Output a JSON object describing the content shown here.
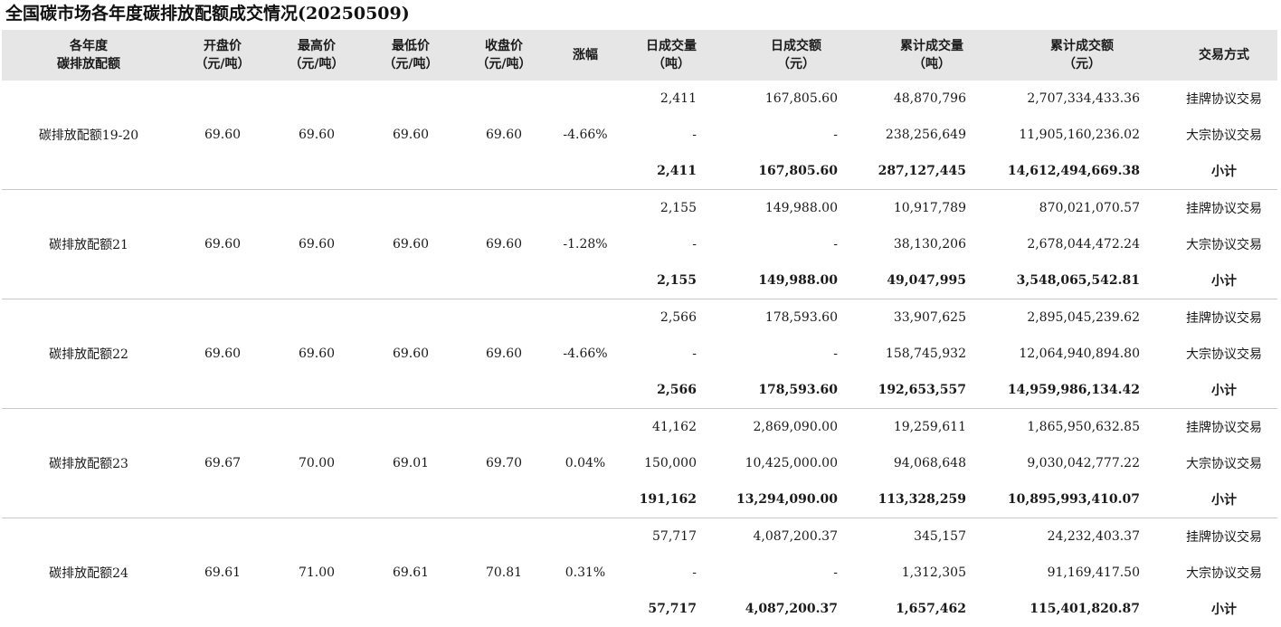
{
  "title": "全国碳市场各年度碳排放配额成交情况(20250509)",
  "headers": [
    [
      "各年度",
      "碳排放配额"
    ],
    [
      "开盘价",
      "（元/吨）"
    ],
    [
      "最高价",
      "（元/吨）"
    ],
    [
      "最低价",
      "（元/吨）"
    ],
    [
      "收盘价",
      "（元/吨）"
    ],
    [
      "涨幅"
    ],
    [
      "日成交量",
      "（吨）"
    ],
    [
      "日成交额",
      "（元）"
    ],
    [
      "累计成交量",
      "（吨）"
    ],
    [
      "累计成交额",
      "（元）"
    ],
    [
      "交易方式"
    ]
  ],
  "groups": [
    {
      "name": "碳排放配额19-20",
      "open": "69.60",
      "high": "69.60",
      "low": "69.60",
      "close": "69.60",
      "change": "-4.66%",
      "rows": [
        {
          "daily_vol": "2,411",
          "daily_amt": "167,805.60",
          "cum_vol": "48,870,796",
          "cum_amt": "2,707,334,433.36",
          "method": "挂牌协议交易"
        },
        {
          "daily_vol": "-",
          "daily_amt": "-",
          "cum_vol": "238,256,649",
          "cum_amt": "11,905,160,236.02",
          "method": "大宗协议交易"
        },
        {
          "daily_vol": "2,411",
          "daily_amt": "167,805.60",
          "cum_vol": "287,127,445",
          "cum_amt": "14,612,494,669.38",
          "method": "小计"
        }
      ]
    },
    {
      "name": "碳排放配额21",
      "open": "69.60",
      "high": "69.60",
      "low": "69.60",
      "close": "69.60",
      "change": "-1.28%",
      "rows": [
        {
          "daily_vol": "2,155",
          "daily_amt": "149,988.00",
          "cum_vol": "10,917,789",
          "cum_amt": "870,021,070.57",
          "method": "挂牌协议交易"
        },
        {
          "daily_vol": "-",
          "daily_amt": "-",
          "cum_vol": "38,130,206",
          "cum_amt": "2,678,044,472.24",
          "method": "大宗协议交易"
        },
        {
          "daily_vol": "2,155",
          "daily_amt": "149,988.00",
          "cum_vol": "49,047,995",
          "cum_amt": "3,548,065,542.81",
          "method": "小计"
        }
      ]
    },
    {
      "name": "碳排放配额22",
      "open": "69.60",
      "high": "69.60",
      "low": "69.60",
      "close": "69.60",
      "change": "-4.66%",
      "rows": [
        {
          "daily_vol": "2,566",
          "daily_amt": "178,593.60",
          "cum_vol": "33,907,625",
          "cum_amt": "2,895,045,239.62",
          "method": "挂牌协议交易"
        },
        {
          "daily_vol": "-",
          "daily_amt": "-",
          "cum_vol": "158,745,932",
          "cum_amt": "12,064,940,894.80",
          "method": "大宗协议交易"
        },
        {
          "daily_vol": "2,566",
          "daily_amt": "178,593.60",
          "cum_vol": "192,653,557",
          "cum_amt": "14,959,986,134.42",
          "method": "小计"
        }
      ]
    },
    {
      "name": "碳排放配额23",
      "open": "69.67",
      "high": "70.00",
      "low": "69.01",
      "close": "69.70",
      "change": "0.04%",
      "rows": [
        {
          "daily_vol": "41,162",
          "daily_amt": "2,869,090.00",
          "cum_vol": "19,259,611",
          "cum_amt": "1,865,950,632.85",
          "method": "挂牌协议交易"
        },
        {
          "daily_vol": "150,000",
          "daily_amt": "10,425,000.00",
          "cum_vol": "94,068,648",
          "cum_amt": "9,030,042,777.22",
          "method": "大宗协议交易"
        },
        {
          "daily_vol": "191,162",
          "daily_amt": "13,294,090.00",
          "cum_vol": "113,328,259",
          "cum_amt": "10,895,993,410.07",
          "method": "小计"
        }
      ]
    },
    {
      "name": "碳排放配额24",
      "open": "69.61",
      "high": "71.00",
      "low": "69.61",
      "close": "70.81",
      "change": "0.31%",
      "rows": [
        {
          "daily_vol": "57,717",
          "daily_amt": "4,087,200.37",
          "cum_vol": "345,157",
          "cum_amt": "24,232,403.37",
          "method": "挂牌协议交易"
        },
        {
          "daily_vol": "-",
          "daily_amt": "-",
          "cum_vol": "1,312,305",
          "cum_amt": "91,169,417.50",
          "method": "大宗协议交易"
        },
        {
          "daily_vol": "57,717",
          "daily_amt": "4,087,200.37",
          "cum_vol": "1,657,462",
          "cum_amt": "115,401,820.87",
          "method": "小计"
        }
      ]
    }
  ]
}
